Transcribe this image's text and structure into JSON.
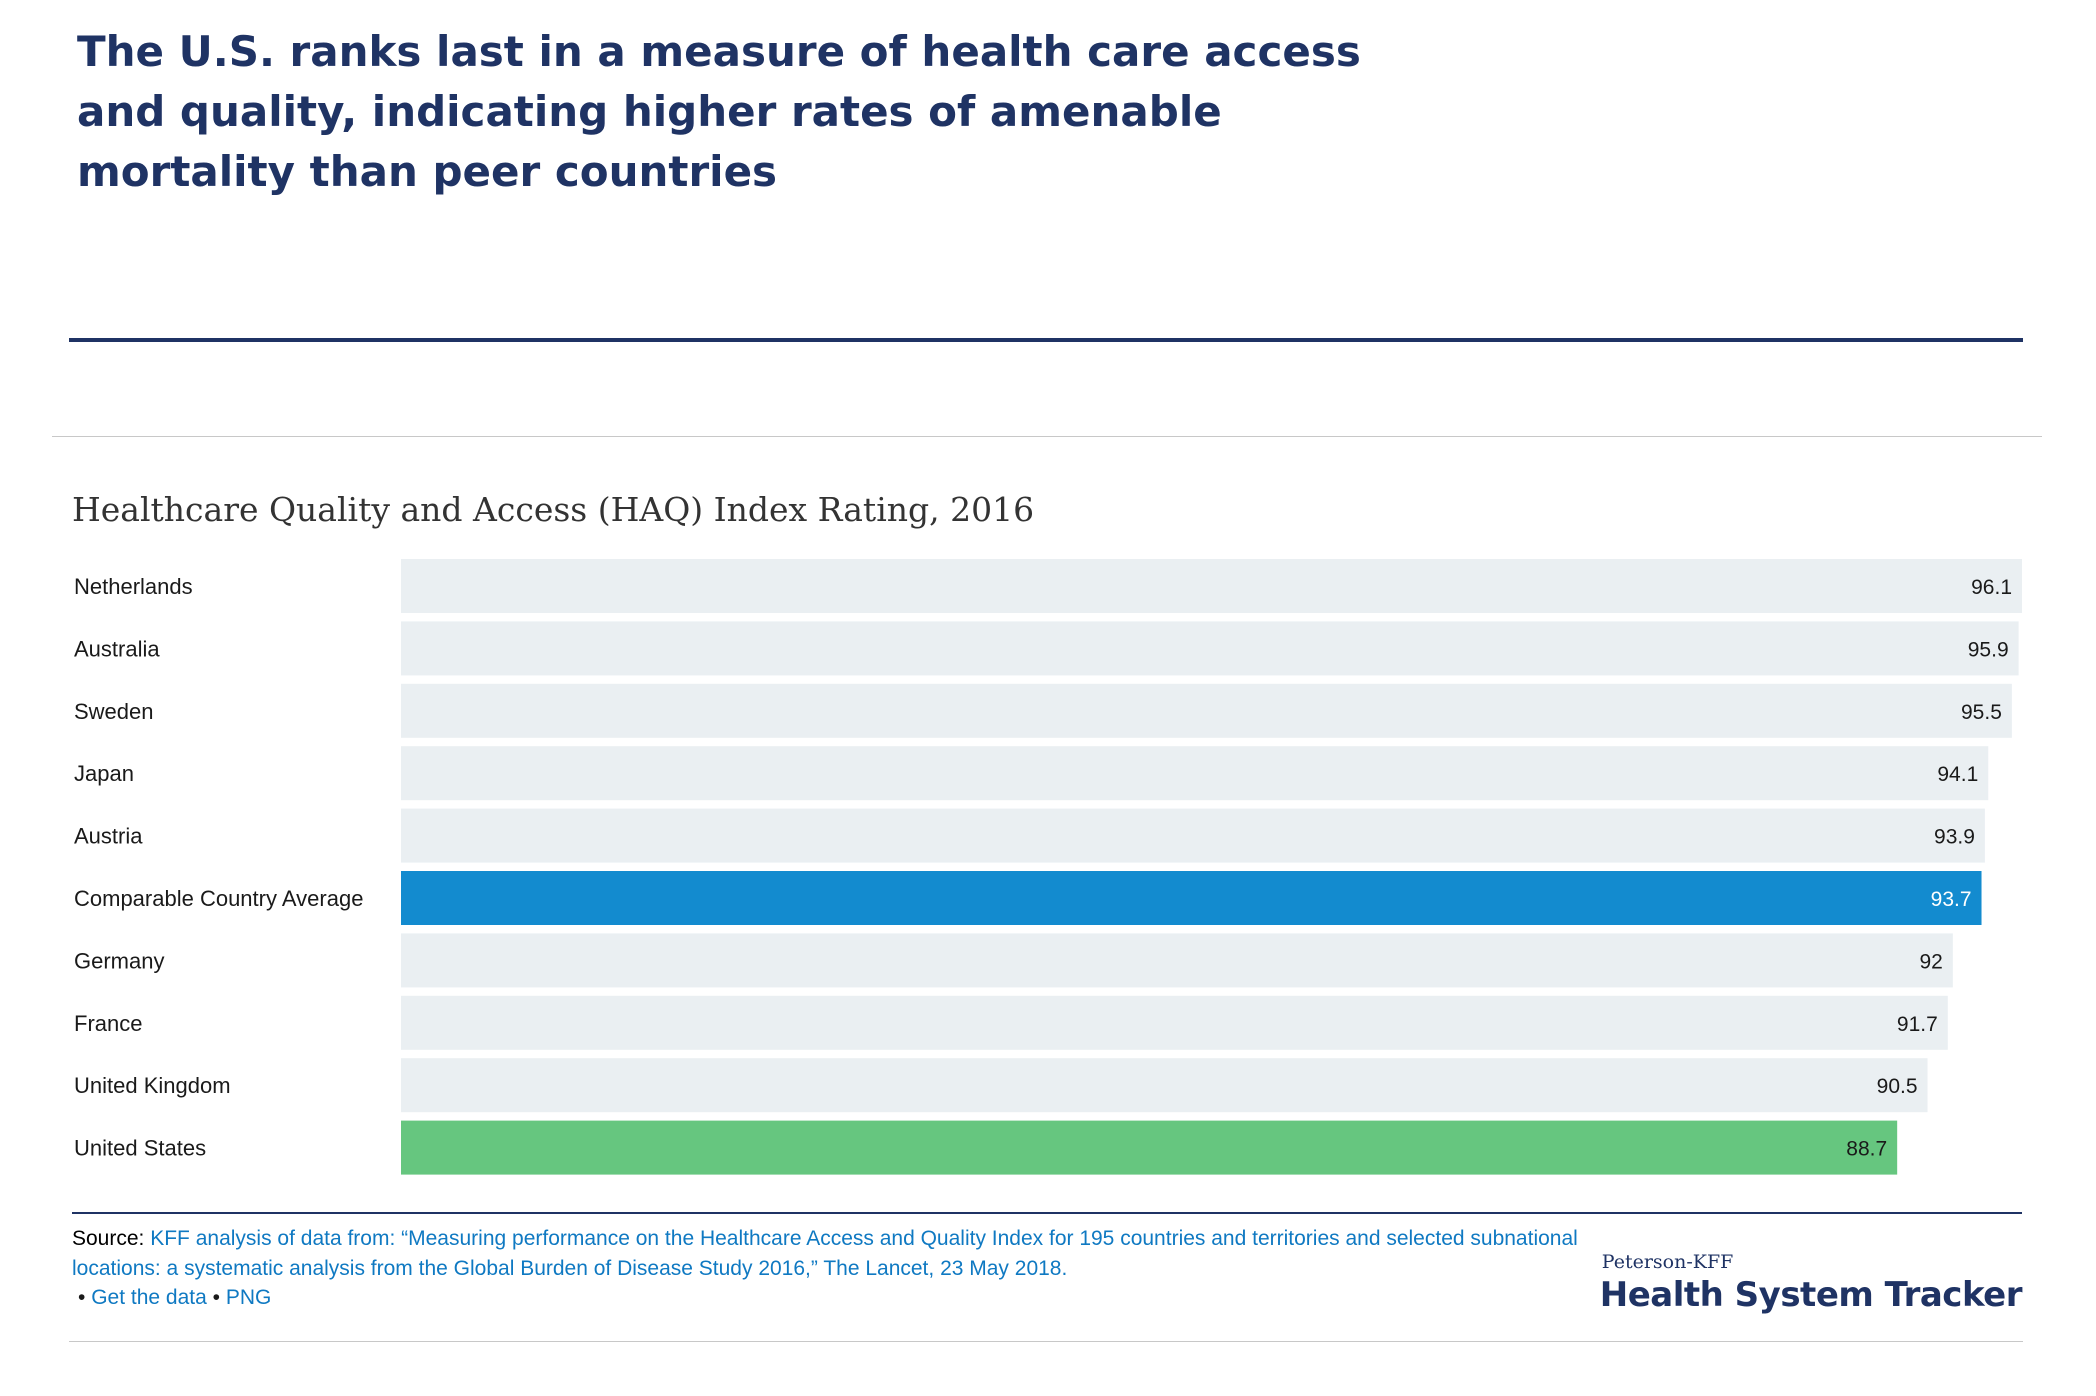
{
  "headline": "The U.S. ranks last in a measure of health care access and quality, indicating higher rates of amenable mortality than peer countries",
  "chart_data": {
    "type": "bar",
    "orientation": "horizontal",
    "title": "Healthcare Quality and Access (HAQ) Index Rating, 2016",
    "xlabel": "",
    "ylabel": "",
    "categories": [
      "Netherlands",
      "Australia",
      "Sweden",
      "Japan",
      "Austria",
      "Comparable Country Average",
      "Germany",
      "France",
      "United Kingdom",
      "United States"
    ],
    "values": [
      96.1,
      95.9,
      95.5,
      94.1,
      93.9,
      93.7,
      92,
      91.7,
      90.5,
      88.7
    ],
    "value_labels": [
      "96.1",
      "95.9",
      "95.5",
      "94.1",
      "93.9",
      "93.7",
      "92",
      "91.7",
      "90.5",
      "88.7"
    ],
    "xlim": [
      0,
      96.1
    ],
    "grid": false,
    "legend": "none",
    "colors": {
      "default": "#eaeff2",
      "Comparable Country Average": "#138bcf",
      "United States": "#66c67f"
    },
    "label_colors": {
      "default": "#1a1a1a",
      "Comparable Country Average": "#ffffff"
    }
  },
  "source": {
    "label": "Source:",
    "citation": "KFF analysis of data from: “Measuring performance on the Healthcare Access and Quality Index for 195 countries and territories and selected subnational locations: a systematic analysis from the Global Burden of Disease Study 2016,” The Lancet, 23 May 2018."
  },
  "links": {
    "bullet": "•",
    "get_data": "Get the data",
    "png": "PNG"
  },
  "brand": {
    "sub": "Peterson-KFF",
    "main": "Health System Tracker"
  },
  "theme": {
    "navy": "#1f3364",
    "link_blue": "#0f79c2"
  }
}
